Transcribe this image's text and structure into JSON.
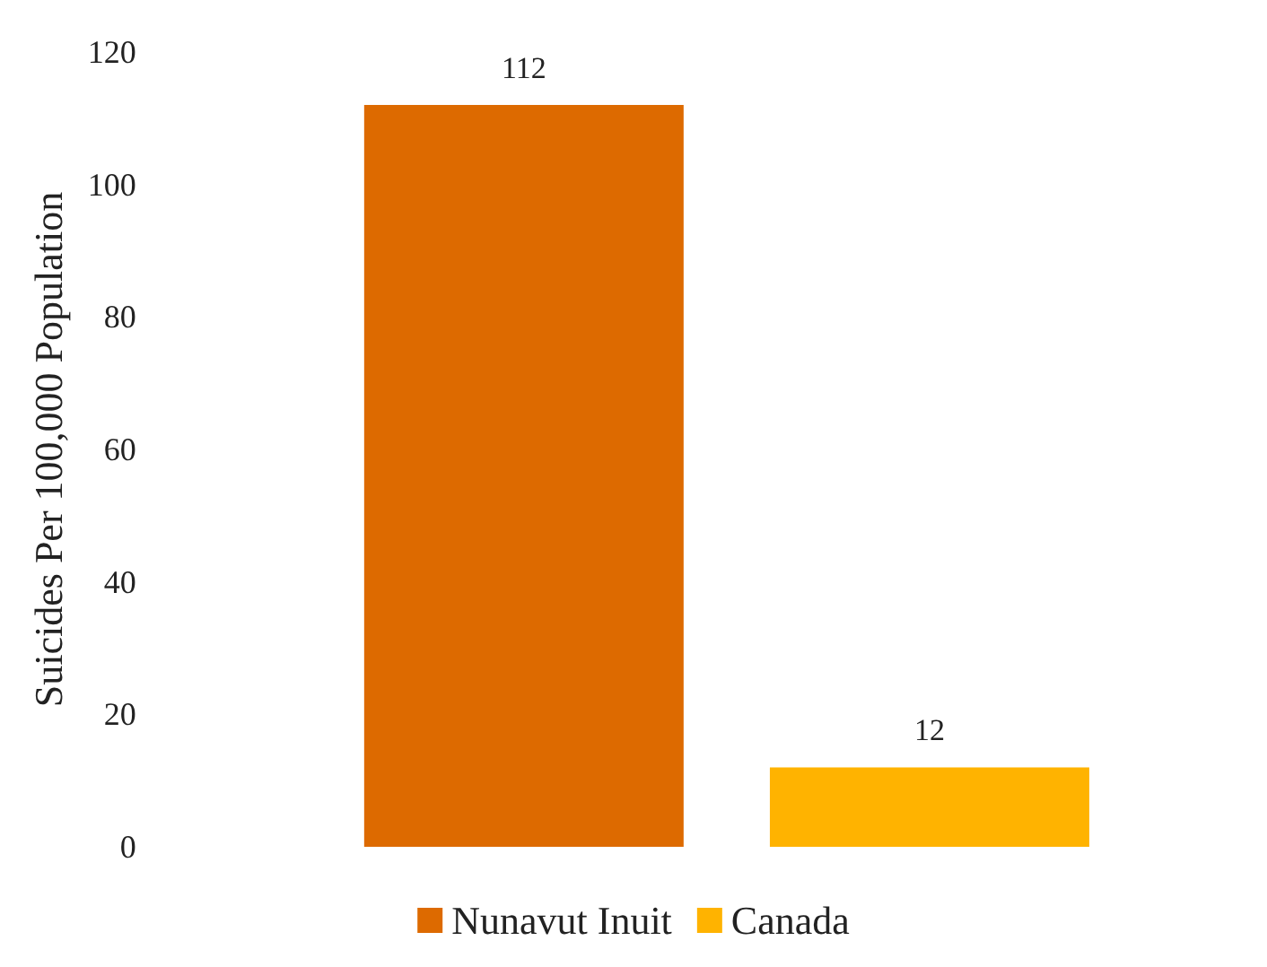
{
  "chart_data": {
    "type": "bar",
    "ylabel": "Suicides Per 100,000 Population",
    "categories": [
      null
    ],
    "series": [
      {
        "name": "Nunavut Inuit",
        "color": "#dd6a00",
        "values": [
          112
        ]
      },
      {
        "name": "Canada",
        "color": "#ffb300",
        "values": [
          12
        ]
      }
    ],
    "ylim": [
      0,
      120
    ],
    "yticks": [
      0,
      20,
      40,
      60,
      80,
      100,
      120
    ],
    "grid": false,
    "legend": "bottom",
    "data_labels": true
  }
}
